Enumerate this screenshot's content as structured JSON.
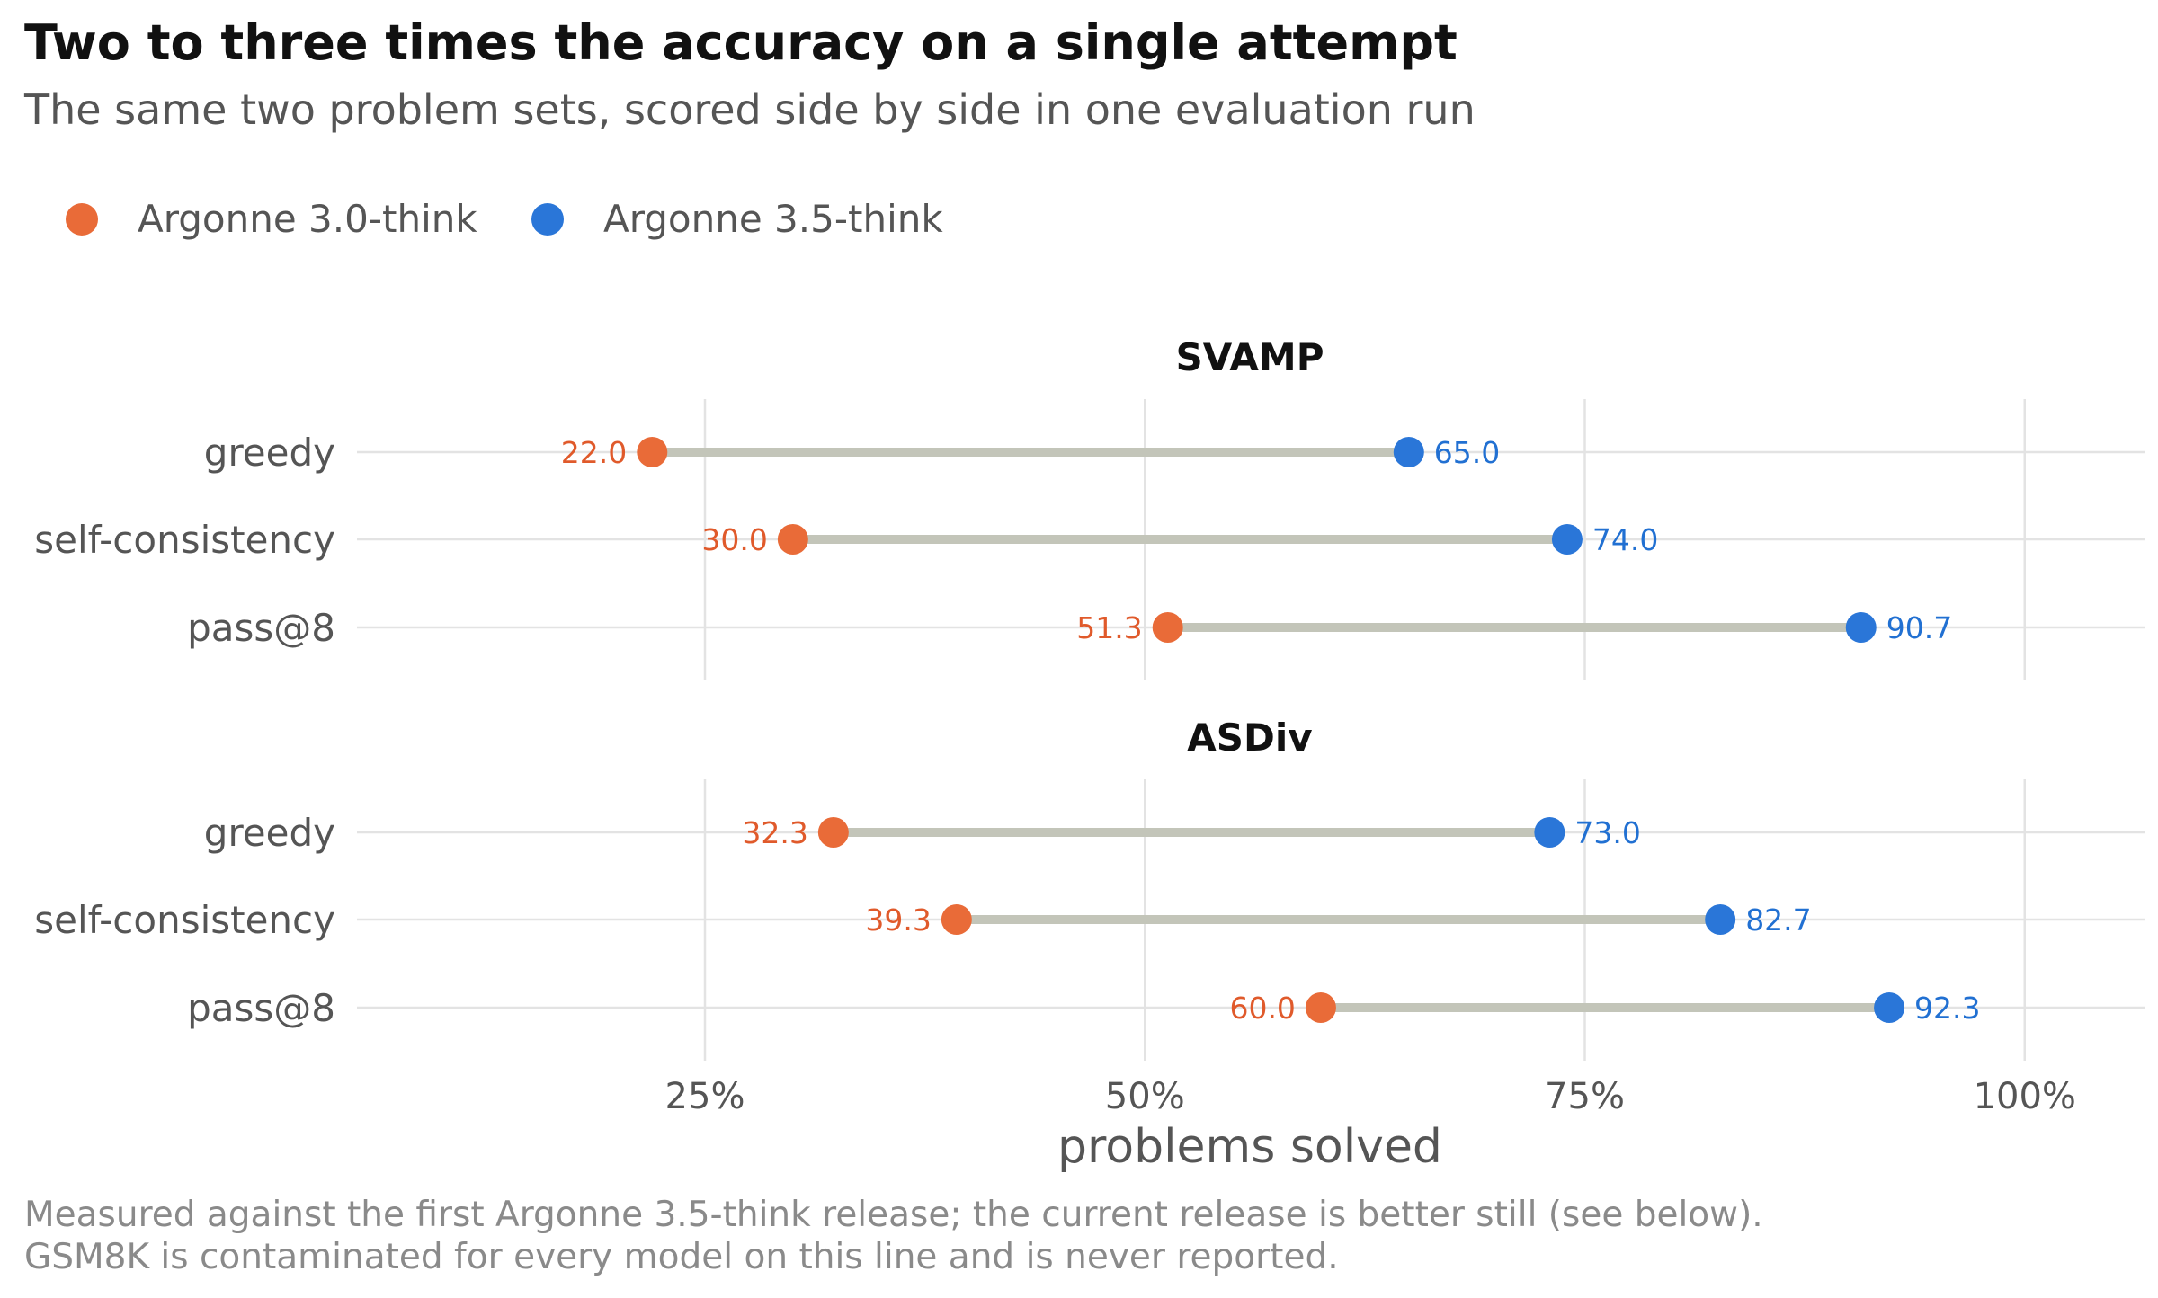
{
  "chart_data": {
    "type": "dumbbell",
    "title": "Two to three times the accuracy on a single attempt",
    "subtitle": "The same two problem sets, scored side by side in one evaluation run",
    "xlabel": "problems solved",
    "x_ticks": [
      "25%",
      "50%",
      "75%",
      "100%"
    ],
    "x_tick_values": [
      25,
      50,
      75,
      100
    ],
    "xlim": [
      5,
      107
    ],
    "grid": true,
    "legend_position": "top-left",
    "series": [
      {
        "name": "Argonne 3.0-think",
        "color": "#e96b38"
      },
      {
        "name": "Argonne 3.5-think",
        "color": "#2a76d8"
      }
    ],
    "connector_color": "#c3c5b9",
    "panels": [
      {
        "title": "SVAMP",
        "rows": [
          {
            "label": "greedy",
            "values": [
              22.0,
              65.0
            ],
            "value_labels": [
              "22.0",
              "65.0"
            ]
          },
          {
            "label": "self-consistency",
            "values": [
              30.0,
              74.0
            ],
            "value_labels": [
              "30.0",
              "74.0"
            ]
          },
          {
            "label": "pass@8",
            "values": [
              51.3,
              90.7
            ],
            "value_labels": [
              "51.3",
              "90.7"
            ]
          }
        ]
      },
      {
        "title": "ASDiv",
        "rows": [
          {
            "label": "greedy",
            "values": [
              32.3,
              73.0
            ],
            "value_labels": [
              "32.3",
              "73.0"
            ]
          },
          {
            "label": "self-consistency",
            "values": [
              39.3,
              82.7
            ],
            "value_labels": [
              "39.3",
              "82.7"
            ]
          },
          {
            "label": "pass@8",
            "values": [
              60.0,
              92.3
            ],
            "value_labels": [
              "60.0",
              "92.3"
            ]
          }
        ]
      }
    ],
    "caption": [
      "Measured against the first Argonne 3.5-think release; the current release is better still (see below).",
      "GSM8K is contaminated for every model on this line and is never reported."
    ]
  }
}
